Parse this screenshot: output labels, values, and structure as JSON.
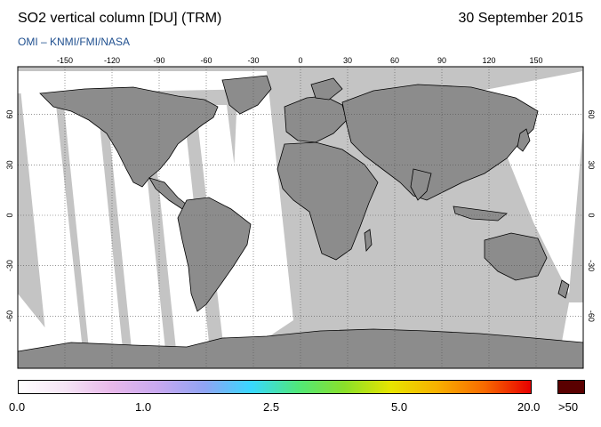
{
  "header": {
    "title": "SO2 vertical column [DU] (TRM)",
    "date": "30 September 2015",
    "credit": "OMI  –  KNMI/FMI/NASA"
  },
  "map": {
    "lon_ticks": [
      -150,
      -120,
      -90,
      -60,
      -30,
      0,
      30,
      60,
      90,
      120,
      150
    ],
    "lat_ticks": [
      60,
      30,
      0,
      -30,
      -60
    ],
    "land_color": "#8c8c8c",
    "ocean_color": "#c4c4c4",
    "swath_color": "#ffffff",
    "coast_color": "#000000"
  },
  "colorbar": {
    "labels": [
      "0.0",
      "1.0",
      "2.5",
      "5.0",
      "20.0"
    ],
    "overflow_label": ">50",
    "stops": [
      "#ffffff",
      "#f5e4f5",
      "#e8b8ea",
      "#c8a8f0",
      "#8fa4f4",
      "#38d8ff",
      "#50e87a",
      "#8ae02a",
      "#e8e400",
      "#f8b000",
      "#f86a00",
      "#e80000"
    ],
    "overflow_color": "#5a0000"
  }
}
